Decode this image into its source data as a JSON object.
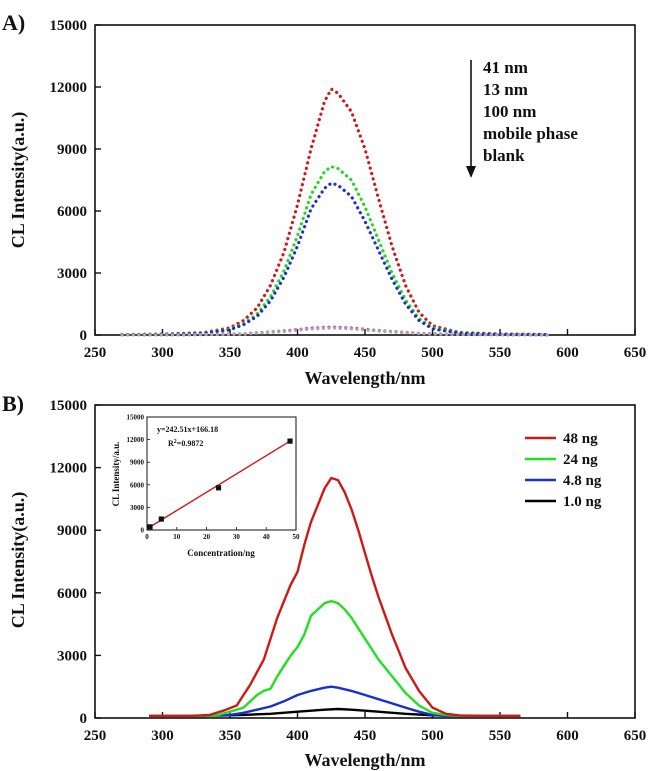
{
  "chart_data": [
    {
      "panel_label": "A)",
      "type": "line",
      "line_style": "dotted",
      "xlabel": "Wavelength/nm",
      "ylabel": "CL Intensity(a.u.)",
      "xlim": [
        250,
        650
      ],
      "ylim": [
        0,
        15000
      ],
      "x_ticks": [
        250,
        300,
        350,
        400,
        450,
        500,
        550,
        600,
        650
      ],
      "y_ticks": [
        0,
        3000,
        6000,
        9000,
        12000,
        15000
      ],
      "annotation_lines": [
        "41 nm",
        "13 nm",
        "100 nm",
        "mobile phase",
        "blank"
      ],
      "series": [
        {
          "color": "#d01818",
          "x": [
            270,
            300,
            330,
            350,
            360,
            370,
            380,
            390,
            400,
            410,
            420,
            425,
            430,
            440,
            450,
            460,
            470,
            480,
            490,
            500,
            520,
            550,
            585
          ],
          "y": [
            20,
            40,
            110,
            350,
            700,
            1300,
            2400,
            4000,
            6300,
            9000,
            11300,
            11900,
            11700,
            10800,
            9000,
            6600,
            4300,
            2400,
            1100,
            450,
            120,
            50,
            20
          ]
        },
        {
          "color": "#20d820",
          "x": [
            270,
            300,
            330,
            350,
            360,
            370,
            380,
            390,
            400,
            410,
            420,
            425,
            430,
            440,
            450,
            460,
            470,
            480,
            490,
            500,
            520,
            550,
            585
          ],
          "y": [
            20,
            40,
            90,
            280,
            550,
            1000,
            1850,
            3100,
            4800,
            6800,
            7900,
            8150,
            8050,
            7500,
            6200,
            4600,
            3000,
            1700,
            800,
            350,
            100,
            45,
            20
          ]
        },
        {
          "color": "#2030c8",
          "x": [
            270,
            300,
            330,
            350,
            360,
            370,
            380,
            390,
            400,
            410,
            420,
            425,
            430,
            440,
            450,
            460,
            470,
            480,
            490,
            500,
            520,
            550,
            585
          ],
          "y": [
            20,
            40,
            80,
            250,
            500,
            900,
            1650,
            2800,
            4300,
            6100,
            7100,
            7350,
            7250,
            6700,
            5500,
            4100,
            2700,
            1500,
            700,
            300,
            90,
            40,
            20
          ]
        },
        {
          "color": "#cc30cc",
          "x": [
            270,
            320,
            360,
            390,
            410,
            425,
            440,
            460,
            490,
            520,
            550,
            585
          ],
          "y": [
            5,
            15,
            60,
            200,
            330,
            380,
            340,
            220,
            80,
            30,
            15,
            5
          ]
        },
        {
          "color": "#a8a8a8",
          "x": [
            270,
            320,
            360,
            390,
            410,
            425,
            440,
            460,
            490,
            520,
            550,
            585
          ],
          "y": [
            5,
            12,
            50,
            170,
            290,
            340,
            300,
            190,
            70,
            25,
            12,
            5
          ]
        }
      ]
    },
    {
      "panel_label": "B)",
      "type": "line",
      "xlabel": "Wavelength/nm",
      "ylabel": "CL Intensity(a.u.)",
      "xlim": [
        250,
        650
      ],
      "ylim": [
        0,
        15000
      ],
      "x_ticks": [
        250,
        300,
        350,
        400,
        450,
        500,
        550,
        600,
        650
      ],
      "y_ticks": [
        0,
        3000,
        6000,
        9000,
        12000,
        15000
      ],
      "legend": "top-right",
      "series": [
        {
          "name": "48 ng",
          "color": "#d01818",
          "x": [
            290,
            320,
            335,
            345,
            355,
            360,
            365,
            370,
            375,
            380,
            385,
            390,
            395,
            400,
            405,
            410,
            415,
            420,
            425,
            430,
            435,
            440,
            445,
            450,
            455,
            460,
            465,
            470,
            475,
            480,
            490,
            500,
            510,
            520,
            540,
            565
          ],
          "y": [
            100,
            100,
            150,
            350,
            600,
            1100,
            1600,
            2200,
            2800,
            3800,
            4800,
            5600,
            6400,
            7000,
            8300,
            9400,
            10200,
            11000,
            11500,
            11400,
            10800,
            10000,
            9000,
            7900,
            6800,
            5800,
            4900,
            4000,
            3200,
            2400,
            1300,
            500,
            200,
            120,
            100,
            100
          ]
        },
        {
          "name": "24 ng",
          "color": "#20e020",
          "x": [
            290,
            320,
            340,
            350,
            360,
            365,
            370,
            375,
            380,
            385,
            390,
            395,
            400,
            405,
            410,
            415,
            420,
            425,
            430,
            435,
            440,
            445,
            450,
            455,
            460,
            465,
            470,
            475,
            480,
            490,
            500,
            510,
            520,
            540,
            565
          ],
          "y": [
            100,
            100,
            120,
            300,
            500,
            800,
            1100,
            1300,
            1400,
            2000,
            2500,
            3000,
            3400,
            4000,
            4900,
            5200,
            5500,
            5600,
            5500,
            5200,
            4800,
            4300,
            3800,
            3300,
            2800,
            2400,
            2000,
            1600,
            1200,
            600,
            250,
            150,
            100,
            100,
            100
          ]
        },
        {
          "name": "4.8 ng",
          "color": "#1a2fd0",
          "x": [
            290,
            330,
            350,
            360,
            370,
            380,
            390,
            400,
            410,
            420,
            425,
            430,
            440,
            450,
            460,
            470,
            480,
            490,
            500,
            510,
            530,
            565
          ],
          "y": [
            100,
            100,
            150,
            250,
            400,
            550,
            800,
            1100,
            1300,
            1450,
            1500,
            1450,
            1300,
            1100,
            900,
            700,
            500,
            300,
            150,
            100,
            100,
            100
          ]
        },
        {
          "name": "1.0 ng",
          "color": "#000000",
          "x": [
            290,
            330,
            360,
            380,
            400,
            420,
            430,
            440,
            460,
            480,
            500,
            520,
            565
          ],
          "y": [
            100,
            100,
            150,
            200,
            300,
            400,
            430,
            400,
            300,
            200,
            130,
            100,
            100
          ]
        }
      ],
      "inset": {
        "type": "scatter",
        "xlabel": "Concentration/ng",
        "ylabel": "CL Intensity/a.u.",
        "xlim": [
          0,
          50
        ],
        "ylim": [
          0,
          15000
        ],
        "x_ticks": [
          0,
          10,
          20,
          30,
          40,
          50
        ],
        "y_ticks": [
          0,
          3000,
          6000,
          9000,
          12000,
          15000
        ],
        "equation": "y=242.51x+166.18",
        "r2_label": "R",
        "r2_sup": "2",
        "r2_value": "=0.9872",
        "points": [
          {
            "x": 1.0,
            "y": 420
          },
          {
            "x": 4.8,
            "y": 1450
          },
          {
            "x": 24,
            "y": 5600
          },
          {
            "x": 48,
            "y": 11800
          }
        ],
        "fit": {
          "slope": 242.51,
          "intercept": 166.18,
          "x_range": [
            0,
            48
          ]
        },
        "point_color": "#111111",
        "fit_color": "#d01818"
      }
    }
  ]
}
